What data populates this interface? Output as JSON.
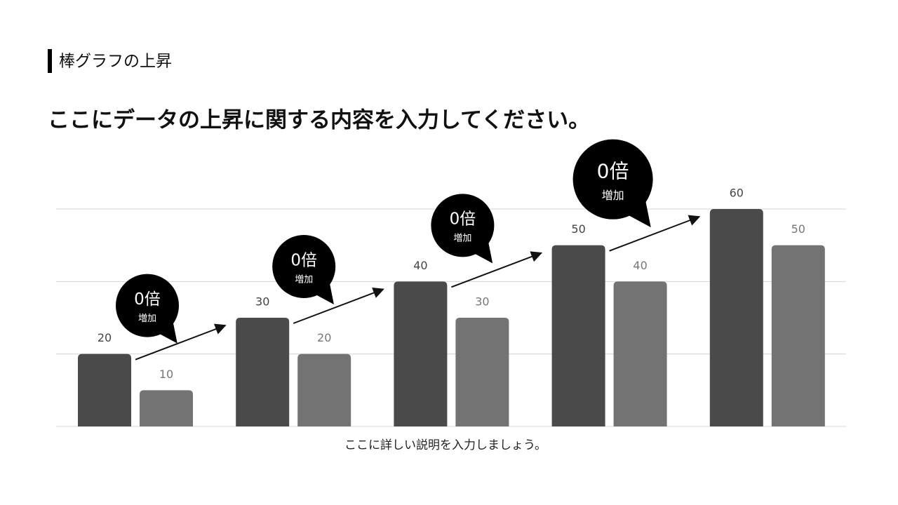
{
  "section_title": "棒グラフの上昇",
  "chart_data": {
    "type": "bar",
    "title": "ここにデータの上昇に関する内容を入力してください。",
    "caption": "ここに詳しい説明を入力しましょう。",
    "categories": [
      null,
      null,
      null,
      null,
      null
    ],
    "series": [
      {
        "color": "#4a4a4a",
        "values": [
          20,
          30,
          40,
          50,
          60
        ]
      },
      {
        "color": "#737373",
        "values": [
          10,
          20,
          30,
          40,
          50
        ]
      }
    ],
    "ylim": [
      0,
      60
    ],
    "yticks": [
      0,
      20,
      40,
      60
    ],
    "grid": true,
    "annotations": [
      {
        "text": "0倍",
        "note": "増加"
      },
      {
        "text": "0倍",
        "note": "増加"
      },
      {
        "text": "0倍",
        "note": "増加"
      },
      {
        "text": "0倍",
        "note": "増加"
      }
    ]
  }
}
